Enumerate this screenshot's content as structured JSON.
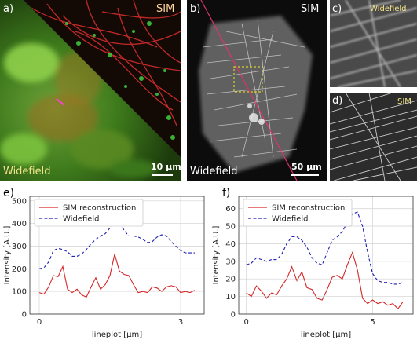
{
  "panels": {
    "a": {
      "label": "a)",
      "top_tag": "SIM",
      "bottom_tag": "Widefield",
      "scale": "10 µm"
    },
    "b": {
      "label": "b)",
      "top_tag": "SIM",
      "bottom_tag": "Widefield",
      "scale": "50 µm"
    },
    "c": {
      "label": "c)",
      "tag": "Widefield"
    },
    "d": {
      "label": "d)",
      "tag": "SIM"
    },
    "e": {
      "label": "e)"
    },
    "f": {
      "label": "f)"
    }
  },
  "colors": {
    "sim_line": "#d62728",
    "widefield_line": "#1f1fb4",
    "tag_yellow": "#f2e38a",
    "sim_tag_a": "#ffd7a0"
  },
  "chart_data": [
    {
      "type": "line",
      "panel": "e",
      "xlabel": "lineplot [µm]",
      "ylabel": "Intensity [A.U.]",
      "xlim": [
        -0.2,
        3.5
      ],
      "ylim": [
        0,
        520
      ],
      "xticks": [
        0,
        3
      ],
      "yticks": [
        0,
        100,
        200,
        300,
        400,
        500
      ],
      "grid": true,
      "legend": "top-left",
      "series": [
        {
          "name": "SIM reconstruction",
          "style": "solid",
          "x": [
            0.0,
            0.1,
            0.2,
            0.3,
            0.4,
            0.5,
            0.6,
            0.7,
            0.8,
            0.9,
            1.0,
            1.1,
            1.2,
            1.3,
            1.4,
            1.5,
            1.6,
            1.7,
            1.8,
            1.9,
            2.0,
            2.1,
            2.2,
            2.3,
            2.4,
            2.5,
            2.6,
            2.7,
            2.8,
            2.9,
            3.0,
            3.1,
            3.2,
            3.3
          ],
          "y": [
            95,
            88,
            120,
            170,
            165,
            210,
            110,
            95,
            110,
            85,
            75,
            120,
            160,
            110,
            130,
            170,
            265,
            190,
            175,
            170,
            130,
            95,
            100,
            95,
            120,
            115,
            100,
            120,
            125,
            120,
            95,
            100,
            95,
            105
          ]
        },
        {
          "name": "Widefield",
          "style": "dashed",
          "x": [
            0.0,
            0.1,
            0.2,
            0.3,
            0.4,
            0.5,
            0.6,
            0.7,
            0.8,
            0.9,
            1.0,
            1.1,
            1.2,
            1.3,
            1.4,
            1.5,
            1.6,
            1.7,
            1.8,
            1.9,
            2.0,
            2.1,
            2.2,
            2.3,
            2.4,
            2.5,
            2.6,
            2.7,
            2.8,
            2.9,
            3.0,
            3.1,
            3.2,
            3.3
          ],
          "y": [
            200,
            205,
            230,
            280,
            290,
            285,
            275,
            255,
            255,
            265,
            285,
            310,
            330,
            345,
            355,
            380,
            420,
            410,
            370,
            345,
            345,
            340,
            330,
            315,
            320,
            340,
            350,
            345,
            320,
            300,
            280,
            270,
            270,
            270
          ]
        }
      ]
    },
    {
      "type": "line",
      "panel": "f",
      "xlabel": "lineplot [µm]",
      "ylabel": "Intensity [A.U.]",
      "xlim": [
        -0.3,
        6.6
      ],
      "ylim": [
        0,
        67
      ],
      "xticks": [
        0,
        5
      ],
      "yticks": [
        0,
        10,
        20,
        30,
        40,
        50,
        60
      ],
      "grid": true,
      "legend": "top-left",
      "series": [
        {
          "name": "SIM reconstruction",
          "style": "solid",
          "x": [
            0.0,
            0.2,
            0.4,
            0.6,
            0.8,
            1.0,
            1.2,
            1.4,
            1.6,
            1.8,
            2.0,
            2.2,
            2.4,
            2.6,
            2.8,
            3.0,
            3.2,
            3.4,
            3.6,
            3.8,
            4.0,
            4.2,
            4.4,
            4.6,
            4.8,
            5.0,
            5.2,
            5.4,
            5.6,
            5.8,
            6.0,
            6.2
          ],
          "y": [
            12,
            10,
            16,
            13,
            9,
            12,
            11,
            16,
            20,
            27,
            19,
            24,
            15,
            14,
            9,
            8,
            14,
            21,
            22,
            20,
            28,
            35,
            25,
            9,
            6,
            8,
            6,
            7,
            5,
            6,
            3,
            7
          ]
        },
        {
          "name": "Widefield",
          "style": "dashed",
          "x": [
            0.0,
            0.2,
            0.4,
            0.6,
            0.8,
            1.0,
            1.2,
            1.4,
            1.6,
            1.8,
            2.0,
            2.2,
            2.4,
            2.6,
            2.8,
            3.0,
            3.2,
            3.4,
            3.6,
            3.8,
            4.0,
            4.2,
            4.4,
            4.6,
            4.8,
            5.0,
            5.2,
            5.4,
            5.6,
            5.8,
            6.0,
            6.2
          ],
          "y": [
            28,
            29,
            32,
            31,
            30,
            31,
            31,
            34,
            40,
            44,
            44,
            42,
            38,
            32,
            29,
            28,
            35,
            42,
            44,
            47,
            52,
            57,
            58,
            50,
            35,
            23,
            19,
            18,
            18,
            17,
            17,
            18
          ]
        }
      ]
    }
  ]
}
